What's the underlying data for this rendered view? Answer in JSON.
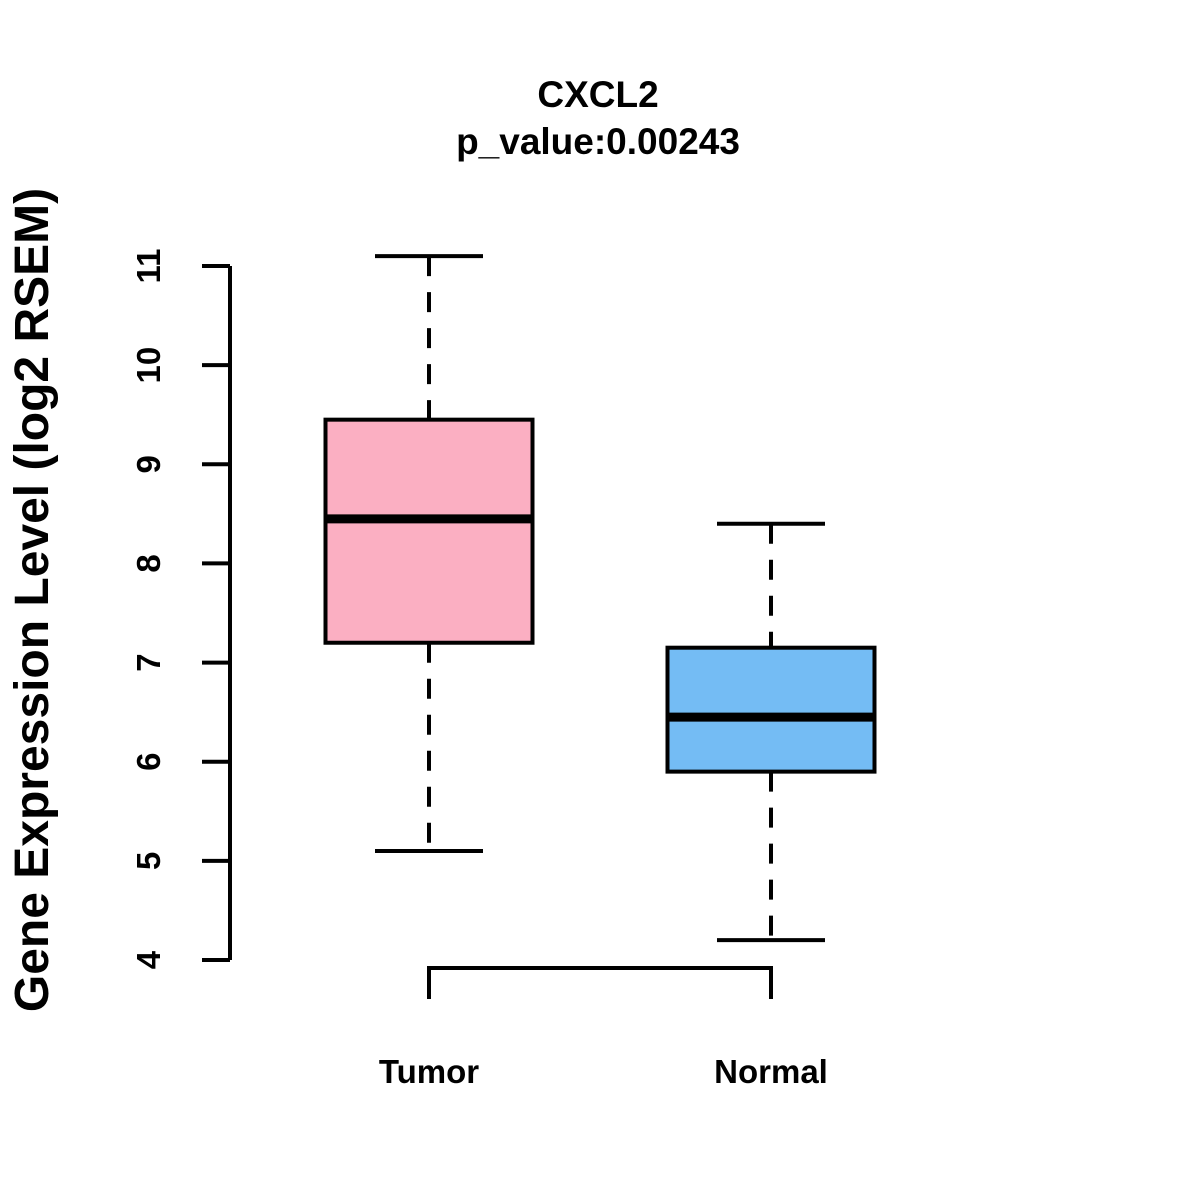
{
  "chart_data": {
    "type": "boxplot",
    "title": "CXCL2",
    "subtitle": "p_value:0.00243",
    "ylabel": "Gene Expression Level (log2 RSEM)",
    "xlabel": "",
    "categories": [
      "Tumor",
      "Normal"
    ],
    "y_ticks": [
      4,
      5,
      6,
      7,
      8,
      9,
      10,
      11
    ],
    "ylim": [
      3.7,
      11.3
    ],
    "grid": false,
    "legend": "none",
    "whisker_style": "dashed",
    "line_color": "#000000",
    "background_color": "#FFFFFF",
    "series": [
      {
        "name": "Tumor",
        "min": 5.1,
        "q1": 7.2,
        "median": 8.45,
        "q3": 9.45,
        "max": 11.1,
        "fill_color": "#FBAFC2"
      },
      {
        "name": "Normal",
        "min": 4.2,
        "q1": 5.9,
        "median": 6.45,
        "q3": 7.15,
        "max": 8.4,
        "fill_color": "#74BCF4"
      }
    ]
  }
}
